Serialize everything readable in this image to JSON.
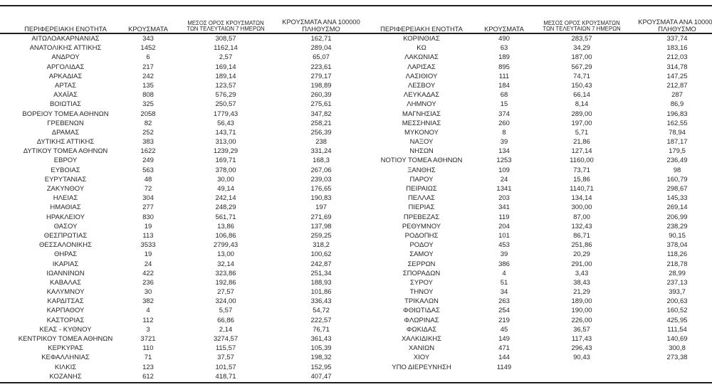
{
  "page": {
    "background_color": "#ffffff",
    "text_color": "#262626",
    "rule_color": "#1f1f1f",
    "language": "el"
  },
  "headers": {
    "region": "ΠΕΡΙΦΕΡΕΙΑΚΗ ΕΝΟΤΗΤΑ",
    "cases": "ΚΡΟΥΣΜΑΤΑ",
    "avg7_line1": "ΜΕΣΟΣ ΟΡΟΣ ΚΡΟΥΣΜΑΤΩΝ",
    "avg7_line2": "ΤΩΝ ΤΕΛΕΥΤΑΙΩΝ 7 ΗΜΕΡΩΝ",
    "per100k_line1": "ΚΡΟΥΣΜΑΤΑ ΑΝΑ 100000",
    "per100k_line2": "ΠΛΗΘΥΣΜΟ"
  },
  "left_table": {
    "rows": [
      [
        "ΑΙΤΩΛΟΑΚΑΡΝΑΝΙΑΣ",
        "343",
        "308,57",
        "162,71"
      ],
      [
        "ΑΝΑΤΟΛΙΚΗΣ ΑΤΤΙΚΗΣ",
        "1452",
        "1162,14",
        "289,04"
      ],
      [
        "ΑΝΔΡΟΥ",
        "6",
        "2,57",
        "65,07"
      ],
      [
        "ΑΡΓΟΛΙΔΑΣ",
        "217",
        "169,14",
        "223,61"
      ],
      [
        "ΑΡΚΑΔΙΑΣ",
        "242",
        "189,14",
        "279,17"
      ],
      [
        "ΑΡΤΑΣ",
        "135",
        "123,57",
        "198,89"
      ],
      [
        "ΑΧΑΪΑΣ",
        "808",
        "576,29",
        "260,39"
      ],
      [
        "ΒΟΙΩΤΙΑΣ",
        "325",
        "250,57",
        "275,61"
      ],
      [
        "ΒΟΡΕΙΟΥ ΤΟΜΕΑ ΑΘΗΝΩΝ",
        "2058",
        "1779,43",
        "347,82"
      ],
      [
        "ΓΡΕΒΕΝΩΝ",
        "82",
        "56,43",
        "258,21"
      ],
      [
        "ΔΡΑΜΑΣ",
        "252",
        "143,71",
        "256,39"
      ],
      [
        "ΔΥΤΙΚΗΣ ΑΤΤΙΚΗΣ",
        "383",
        "313,00",
        "238"
      ],
      [
        "ΔΥΤΙΚΟΥ ΤΟΜΕΑ ΑΘΗΝΩΝ",
        "1622",
        "1239,29",
        "331,24"
      ],
      [
        "ΕΒΡΟΥ",
        "249",
        "169,71",
        "168,3"
      ],
      [
        "ΕΥΒΟΙΑΣ",
        "563",
        "378,00",
        "267,06"
      ],
      [
        "ΕΥΡΥΤΑΝΙΑΣ",
        "48",
        "30,00",
        "239,03"
      ],
      [
        "ΖΑΚΥΝΘΟΥ",
        "72",
        "49,14",
        "176,65"
      ],
      [
        "ΗΛΕΙΑΣ",
        "304",
        "242,14",
        "190,83"
      ],
      [
        "ΗΜΑΘΙΑΣ",
        "277",
        "248,29",
        "197"
      ],
      [
        "ΗΡΑΚΛΕΙΟΥ",
        "830",
        "561,71",
        "271,69"
      ],
      [
        "ΘΑΣΟΥ",
        "19",
        "13,86",
        "137,98"
      ],
      [
        "ΘΕΣΠΡΩΤΙΑΣ",
        "113",
        "106,86",
        "259,25"
      ],
      [
        "ΘΕΣΣΑΛΟΝΙΚΗΣ",
        "3533",
        "2799,43",
        "318,2"
      ],
      [
        "ΘΗΡΑΣ",
        "19",
        "13,00",
        "100,62"
      ],
      [
        "ΙΚΑΡΙΑΣ",
        "24",
        "32,14",
        "242,87"
      ],
      [
        "ΙΩΑΝΝΙΝΩΝ",
        "422",
        "323,86",
        "251,34"
      ],
      [
        "ΚΑΒΑΛΑΣ",
        "236",
        "192,86",
        "188,93"
      ],
      [
        "ΚΑΛΥΜΝΟΥ",
        "30",
        "27,57",
        "101,86"
      ],
      [
        "ΚΑΡΔΙΤΣΑΣ",
        "382",
        "324,00",
        "336,43"
      ],
      [
        "ΚΑΡΠΑΘΟΥ",
        "4",
        "5,57",
        "54,72"
      ],
      [
        "ΚΑΣΤΟΡΙΑΣ",
        "112",
        "66,86",
        "222,57"
      ],
      [
        "ΚΕΑΣ - ΚΥΘΝΟΥ",
        "3",
        "2,14",
        "76,71"
      ],
      [
        "ΚΕΝΤΡΙΚΟΥ ΤΟΜΕΑ ΑΘΗΝΩΝ",
        "3721",
        "3274,57",
        "361,43"
      ],
      [
        "ΚΕΡΚΥΡΑΣ",
        "110",
        "115,57",
        "105,39"
      ],
      [
        "ΚΕΦΑΛΛΗΝΙΑΣ",
        "71",
        "37,57",
        "198,32"
      ],
      [
        "ΚΙΛΚΙΣ",
        "123",
        "101,57",
        "152,95"
      ],
      [
        "ΚΟΖΑΝΗΣ",
        "612",
        "418,71",
        "407,47"
      ]
    ]
  },
  "right_table": {
    "rows": [
      [
        "ΚΟΡΙΝΘΙΑΣ",
        "490",
        "283,57",
        "337,74"
      ],
      [
        "ΚΩ",
        "63",
        "34,29",
        "183,16"
      ],
      [
        "ΛΑΚΩΝΙΑΣ",
        "189",
        "187,00",
        "212,03"
      ],
      [
        "ΛΑΡΙΣΑΣ",
        "895",
        "567,29",
        "314,78"
      ],
      [
        "ΛΑΣΙΘΙΟΥ",
        "111",
        "74,71",
        "147,25"
      ],
      [
        "ΛΕΣΒΟΥ",
        "184",
        "150,43",
        "212,87"
      ],
      [
        "ΛΕΥΚΑΔΑΣ",
        "68",
        "66,14",
        "287"
      ],
      [
        "ΛΗΜΝΟΥ",
        "15",
        "8,14",
        "86,9"
      ],
      [
        "ΜΑΓΝΗΣΙΑΣ",
        "374",
        "289,00",
        "196,83"
      ],
      [
        "ΜΕΣΣΗΝΙΑΣ",
        "260",
        "197,00",
        "162,55"
      ],
      [
        "ΜΥΚΟΝΟΥ",
        "8",
        "5,71",
        "78,94"
      ],
      [
        "ΝΑΞΟΥ",
        "39",
        "21,86",
        "187,17"
      ],
      [
        "ΝΗΣΩΝ",
        "134",
        "127,14",
        "179,5"
      ],
      [
        "ΝΟΤΙΟΥ ΤΟΜΕΑ ΑΘΗΝΩΝ",
        "1253",
        "1160,00",
        "236,49"
      ],
      [
        "ΞΑΝΘΗΣ",
        "109",
        "73,71",
        "98"
      ],
      [
        "ΠΑΡΟΥ",
        "24",
        "15,86",
        "160,79"
      ],
      [
        "ΠΕΙΡΑΙΩΣ",
        "1341",
        "1140,71",
        "298,67"
      ],
      [
        "ΠΕΛΛΑΣ",
        "203",
        "134,14",
        "145,33"
      ],
      [
        "ΠΙΕΡΙΑΣ",
        "341",
        "300,00",
        "269,14"
      ],
      [
        "ΠΡΕΒΕΖΑΣ",
        "119",
        "87,00",
        "206,99"
      ],
      [
        "ΡΕΘΥΜΝΟΥ",
        "204",
        "132,43",
        "238,29"
      ],
      [
        "ΡΟΔΟΠΗΣ",
        "101",
        "86,71",
        "90,15"
      ],
      [
        "ΡΟΔΟΥ",
        "453",
        "251,86",
        "378,04"
      ],
      [
        "ΣΑΜΟΥ",
        "39",
        "20,29",
        "118,26"
      ],
      [
        "ΣΕΡΡΩΝ",
        "386",
        "291,00",
        "218,78"
      ],
      [
        "ΣΠΟΡΑΔΩΝ",
        "4",
        "3,43",
        "28,99"
      ],
      [
        "ΣΥΡΟΥ",
        "51",
        "38,43",
        "237,13"
      ],
      [
        "ΤΗΝΟΥ",
        "34",
        "21,29",
        "393,7"
      ],
      [
        "ΤΡΙΚΑΛΩΝ",
        "263",
        "189,00",
        "200,63"
      ],
      [
        "ΦΘΙΩΤΙΔΑΣ",
        "254",
        "190,00",
        "160,52"
      ],
      [
        "ΦΛΩΡΙΝΑΣ",
        "219",
        "226,00",
        "425,95"
      ],
      [
        "ΦΩΚΙΔΑΣ",
        "45",
        "36,57",
        "111,54"
      ],
      [
        "ΧΑΛΚΙΔΙΚΗΣ",
        "149",
        "117,43",
        "140,69"
      ],
      [
        "ΧΑΝΙΩΝ",
        "471",
        "296,43",
        "300,8"
      ],
      [
        "ΧΙΟΥ",
        "144",
        "90,43",
        "273,38"
      ],
      [
        "ΥΠΟ ΔΙΕΡΕΥΝΗΣΗ",
        "1149",
        "",
        ""
      ]
    ]
  }
}
